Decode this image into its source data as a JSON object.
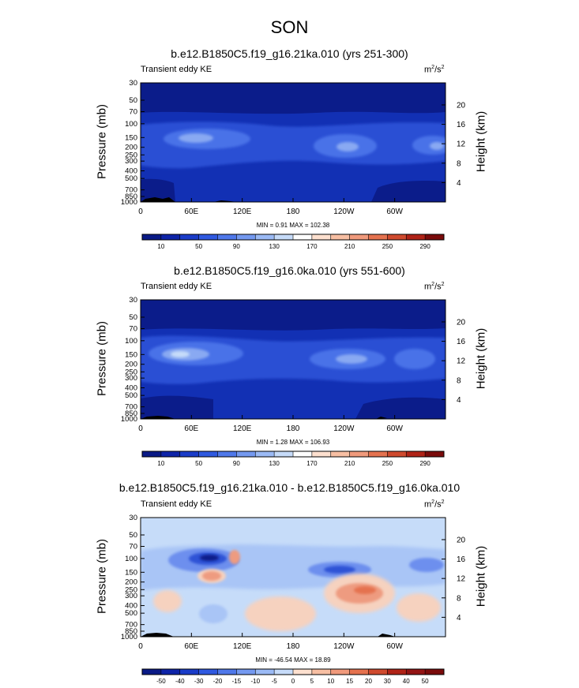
{
  "main_title": "SON",
  "colors": {
    "dark_navy": "#0b1c8a",
    "royal_blue": "#2040c8",
    "mid_blue": "#4a70e6",
    "light_blue": "#86a7f2",
    "pale_blue": "#c6dcf9",
    "peach": "#f6d2bf",
    "salmon": "#ee9b80",
    "topography": "#000000"
  },
  "chart_data": [
    {
      "type": "heatmap",
      "title": "b.e12.B1850C5.f19_g16.21ka.010 (yrs 251-300)",
      "left_label": "Transient eddy KE",
      "units_base": "m",
      "units_exp": "2",
      "units_sep": "/s",
      "units_exp2": "2",
      "xlabel": "",
      "ylabel": "Pressure (mb)",
      "ylabel_right": "Height (km)",
      "x_ticks": [
        "0",
        "60E",
        "120E",
        "180",
        "120W",
        "60W"
      ],
      "x_range_deg": [
        0,
        360
      ],
      "y_ticks": [
        "30",
        "50",
        "70",
        "100",
        "150",
        "200",
        "250",
        "300",
        "400",
        "500",
        "700",
        "850",
        "1000"
      ],
      "y_range_mb": [
        30,
        1000
      ],
      "height_ticks": [
        "20",
        "16",
        "12",
        "8",
        "4"
      ],
      "stats": "MIN =   0.91  MAX = 102.38",
      "colorbar_labels": [
        "10",
        "50",
        "90",
        "130",
        "170",
        "210",
        "250",
        "290"
      ],
      "colorbar_colors": [
        "#0a1a86",
        "#0e24a8",
        "#1a3cc8",
        "#2f59e0",
        "#4f78ea",
        "#7499f0",
        "#9bbaf5",
        "#c6dbf9",
        "#ffffff",
        "#fde0cf",
        "#f7bfa3",
        "#f09a7c",
        "#e5724f",
        "#cf4a2e",
        "#b02317",
        "#7a0b0b"
      ],
      "min": 0.91,
      "max": 102.38
    },
    {
      "type": "heatmap",
      "title": "b.e12.B1850C5.f19_g16.0ka.010 (yrs 551-600)",
      "left_label": "Transient eddy KE",
      "units_base": "m",
      "units_exp": "2",
      "units_sep": "/s",
      "units_exp2": "2",
      "xlabel": "",
      "ylabel": "Pressure (mb)",
      "ylabel_right": "Height (km)",
      "x_ticks": [
        "0",
        "60E",
        "120E",
        "180",
        "120W",
        "60W"
      ],
      "x_range_deg": [
        0,
        360
      ],
      "y_ticks": [
        "30",
        "50",
        "70",
        "100",
        "150",
        "200",
        "250",
        "300",
        "400",
        "500",
        "700",
        "850",
        "1000"
      ],
      "y_range_mb": [
        30,
        1000
      ],
      "height_ticks": [
        "20",
        "16",
        "12",
        "8",
        "4"
      ],
      "stats": "MIN =   1.28  MAX = 106.93",
      "colorbar_labels": [
        "10",
        "50",
        "90",
        "130",
        "170",
        "210",
        "250",
        "290"
      ],
      "colorbar_colors": [
        "#0a1a86",
        "#0e24a8",
        "#1a3cc8",
        "#2f59e0",
        "#4f78ea",
        "#7499f0",
        "#9bbaf5",
        "#c6dbf9",
        "#ffffff",
        "#fde0cf",
        "#f7bfa3",
        "#f09a7c",
        "#e5724f",
        "#cf4a2e",
        "#b02317",
        "#7a0b0b"
      ],
      "min": 1.28,
      "max": 106.93
    },
    {
      "type": "heatmap",
      "title": "b.e12.B1850C5.f19_g16.21ka.010 - b.e12.B1850C5.f19_g16.0ka.010",
      "left_label": "Transient eddy KE",
      "units_base": "m",
      "units_exp": "2",
      "units_sep": "/s",
      "units_exp2": "2",
      "xlabel": "",
      "ylabel": "Pressure (mb)",
      "ylabel_right": "Height (km)",
      "x_ticks": [
        "0",
        "60E",
        "120E",
        "180",
        "120W",
        "60W"
      ],
      "x_range_deg": [
        0,
        360
      ],
      "y_ticks": [
        "30",
        "50",
        "70",
        "100",
        "150",
        "200",
        "250",
        "300",
        "400",
        "500",
        "700",
        "850",
        "1000"
      ],
      "y_range_mb": [
        30,
        1000
      ],
      "height_ticks": [
        "20",
        "16",
        "12",
        "8",
        "4"
      ],
      "stats": "MIN = -46.54  MAX =  18.89",
      "colorbar_labels": [
        "-50",
        "-40",
        "-30",
        "-20",
        "-15",
        "-10",
        "-5",
        "0",
        "5",
        "10",
        "15",
        "20",
        "30",
        "40",
        "50"
      ],
      "colorbar_colors": [
        "#0a1a86",
        "#0e24a8",
        "#1a3cc8",
        "#2f59e0",
        "#4f78ea",
        "#7499f0",
        "#9bbaf5",
        "#c6dbf9",
        "#fde0cf",
        "#f7bfa3",
        "#f09a7c",
        "#e5724f",
        "#cf4a2e",
        "#b02317",
        "#931414",
        "#7a0b0b"
      ],
      "min": -46.54,
      "max": 18.89
    }
  ]
}
